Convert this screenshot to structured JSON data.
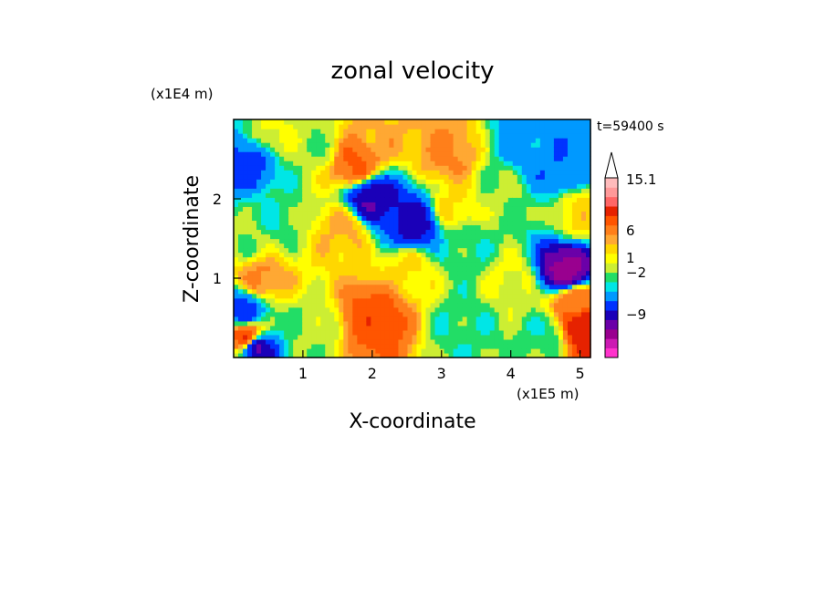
{
  "chart_data": {
    "type": "heatmap",
    "title": "zonal velocity",
    "xlabel": "X-coordinate",
    "ylabel": "Z-coordinate",
    "x_multiplier": "(x1E5 m)",
    "y_multiplier": "(x1E4 m)",
    "time_label": "t=59400 s",
    "xlim": [
      0,
      5.15
    ],
    "ylim": [
      0,
      3.0
    ],
    "x_ticks": [
      1,
      2,
      3,
      4,
      5
    ],
    "y_ticks": [
      1,
      2
    ],
    "colorbar": {
      "labels": [
        "15.1",
        "6",
        "1",
        "−2",
        "−9"
      ],
      "colors": [
        "#ff33cc",
        "#cc1ab3",
        "#99008f",
        "#6b00a8",
        "#1a00b8",
        "#0033ff",
        "#0099ff",
        "#00e6e6",
        "#22dd66",
        "#ccee33",
        "#ffff00",
        "#ffd700",
        "#ffa833",
        "#ff7f1a",
        "#ff5500",
        "#e62200",
        "#ff6666",
        "#ff9999",
        "#ffbbbb"
      ]
    },
    "field": [
      {
        "x": 0.2,
        "z": 0.25,
        "v": 8
      },
      {
        "x": 0.3,
        "z": 0.15,
        "v": -10
      },
      {
        "x": 0.15,
        "z": 0.6,
        "v": -6
      },
      {
        "x": 0.4,
        "z": 1.0,
        "v": 3
      },
      {
        "x": 0.3,
        "z": 1.5,
        "v": -1
      },
      {
        "x": 0.2,
        "z": 2.45,
        "v": -6
      },
      {
        "x": 0.55,
        "z": 1.75,
        "v": -2
      },
      {
        "x": 0.6,
        "z": 2.85,
        "v": 0
      },
      {
        "x": 1.1,
        "z": 0.35,
        "v": -1
      },
      {
        "x": 1.2,
        "z": 2.65,
        "v": -1
      },
      {
        "x": 1.6,
        "z": 1.6,
        "v": 2
      },
      {
        "x": 1.75,
        "z": 2.45,
        "v": 5
      },
      {
        "x": 2.0,
        "z": 2.0,
        "v": -9
      },
      {
        "x": 2.05,
        "z": 0.5,
        "v": 6
      },
      {
        "x": 2.6,
        "z": 1.7,
        "v": -8
      },
      {
        "x": 2.5,
        "z": 1.1,
        "v": 1
      },
      {
        "x": 2.2,
        "z": 2.85,
        "v": 2
      },
      {
        "x": 3.1,
        "z": 2.55,
        "v": 3
      },
      {
        "x": 3.3,
        "z": 0.4,
        "v": -2
      },
      {
        "x": 3.4,
        "z": 1.4,
        "v": -2
      },
      {
        "x": 3.8,
        "z": 2.1,
        "v": -1
      },
      {
        "x": 4.2,
        "z": 2.7,
        "v": -4
      },
      {
        "x": 4.5,
        "z": 0.3,
        "v": -2
      },
      {
        "x": 4.8,
        "z": 1.1,
        "v": -12
      },
      {
        "x": 4.7,
        "z": 2.4,
        "v": -5
      },
      {
        "x": 5.05,
        "z": 0.4,
        "v": 9
      },
      {
        "x": 4.9,
        "z": 0.7,
        "v": 4
      },
      {
        "x": 5.0,
        "z": 1.8,
        "v": 1
      },
      {
        "x": 3.2,
        "z": 1.9,
        "v": 1
      },
      {
        "x": 4.0,
        "z": 1.0,
        "v": 0
      }
    ]
  }
}
